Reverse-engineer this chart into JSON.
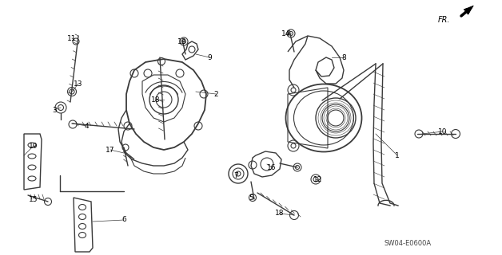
{
  "background_color": "#ffffff",
  "line_color": "#3a3a3a",
  "text_color": "#000000",
  "diagram_code": "SW04-E0600A",
  "label_fontsize": 6.5,
  "figsize": [
    6.28,
    3.2
  ],
  "dpi": 100,
  "labels": [
    [
      "1",
      497,
      195
    ],
    [
      "2",
      270,
      118
    ],
    [
      "3",
      68,
      138
    ],
    [
      "4",
      108,
      158
    ],
    [
      "5",
      314,
      248
    ],
    [
      "6",
      155,
      276
    ],
    [
      "7",
      295,
      220
    ],
    [
      "8",
      430,
      72
    ],
    [
      "9",
      262,
      72
    ],
    [
      "10",
      554,
      165
    ],
    [
      "11",
      90,
      48
    ],
    [
      "12",
      398,
      225
    ],
    [
      "13",
      98,
      105
    ],
    [
      "13",
      228,
      52
    ],
    [
      "14",
      358,
      42
    ],
    [
      "15",
      42,
      250
    ],
    [
      "16",
      340,
      210
    ],
    [
      "17",
      138,
      188
    ],
    [
      "18",
      195,
      125
    ],
    [
      "18",
      350,
      268
    ],
    [
      "19",
      42,
      183
    ]
  ]
}
